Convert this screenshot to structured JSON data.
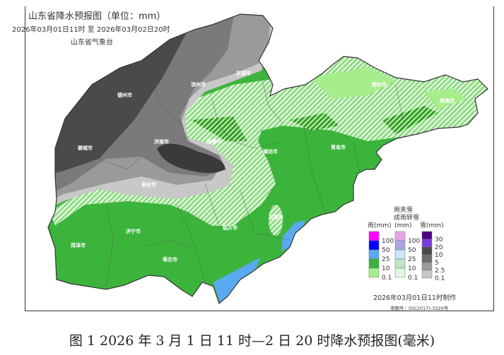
{
  "header": {
    "title": "山东省降水预报图（单位：mm）",
    "period": "2026年03月01日11时  至  2026年03月02日20时",
    "agency": "山东省气象台"
  },
  "map": {
    "cities": [
      "德州市",
      "聊城市",
      "济南市",
      "泰安市",
      "滨州市",
      "东营市",
      "淄博市",
      "潍坊市",
      "青岛市",
      "烟台市",
      "威海市",
      "日照市",
      "临沂市",
      "济宁市",
      "菏泽市",
      "枣庄市"
    ],
    "colors": {
      "rain_10_25": "#3cb43c",
      "rain_0_10": "#a6ee8c",
      "rain_25_50": "#5aaaf0",
      "snow_10_20": "#4a4a4a",
      "snow_20_30": "#3a3a3a",
      "snow_5_10": "#7a7a7a",
      "snow_2_5": "#9a9a9a",
      "snow_0_2": "#c8c8c8"
    }
  },
  "legend": {
    "rain": {
      "title": "雨(mm)",
      "ticks": [
        "100",
        "50",
        "25",
        "10",
        "0.1"
      ],
      "colors": [
        "#ff00ff",
        "#0000ff",
        "#5aaaf0",
        "#3cb43c",
        "#a6ee8c"
      ]
    },
    "mixed": {
      "title_line1": "雨夹雪",
      "title_line2": "成雨转雪",
      "unit": "(mm)",
      "ticks": [
        "100",
        "50",
        "25",
        "10",
        "0.1"
      ],
      "colors": [
        "#e6a6e6",
        "#a6a6e6",
        "#cce6f6",
        "#bfe6bf",
        "#e2f6e2"
      ]
    },
    "snow": {
      "title": "雪(mm)",
      "ticks": [
        "30",
        "20",
        "10",
        "5",
        "2.5",
        "0.1"
      ],
      "colors": [
        "#4b0082",
        "#7a3cdc",
        "#4a4a4a",
        "#6e6e6e",
        "#9a9a9a",
        "#c8c8c8"
      ]
    },
    "made": "2026年03月01日11时制作",
    "review": "审图号：GS(2017)-3320号"
  },
  "caption": "图 1 2026 年 3 月 1 日 11 时—2 日 20 时降水预报图(毫米)"
}
